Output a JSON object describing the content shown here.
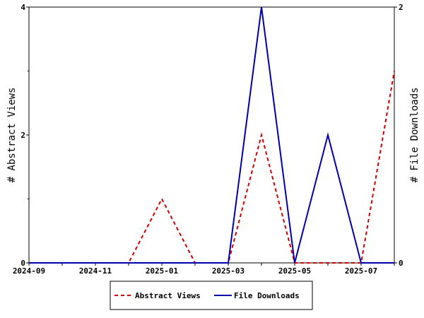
{
  "chart_data": {
    "type": "line",
    "x": [
      "2024-09",
      "2024-10",
      "2024-11",
      "2024-12",
      "2025-01",
      "2025-02",
      "2025-03",
      "2025-04",
      "2025-05",
      "2025-06",
      "2025-07",
      "2025-08"
    ],
    "x_tick_labels": [
      "2024-09",
      "2024-11",
      "2025-01",
      "2025-03",
      "2025-05",
      "2025-07"
    ],
    "y_left": {
      "label": "# Abstract Views",
      "range": [
        0,
        4
      ],
      "ticks": [
        "0",
        "2",
        "4"
      ]
    },
    "y_right": {
      "label": "# File Downloads",
      "range": [
        0,
        2
      ],
      "ticks": [
        "0",
        "2"
      ]
    },
    "series": [
      {
        "name": "Abstract Views",
        "axis": "left",
        "color": "#cc0000",
        "dash": "dashed",
        "values": [
          0,
          0,
          0,
          0,
          1,
          0,
          0,
          2,
          0,
          0,
          0,
          3
        ]
      },
      {
        "name": "File Downloads",
        "axis": "right",
        "color": "#0000aa",
        "dash": "solid",
        "values": [
          0,
          0,
          0,
          0,
          0,
          0,
          0,
          2,
          0,
          1,
          0,
          0
        ]
      }
    ],
    "grid": false,
    "legend_position": "bottom-center"
  }
}
